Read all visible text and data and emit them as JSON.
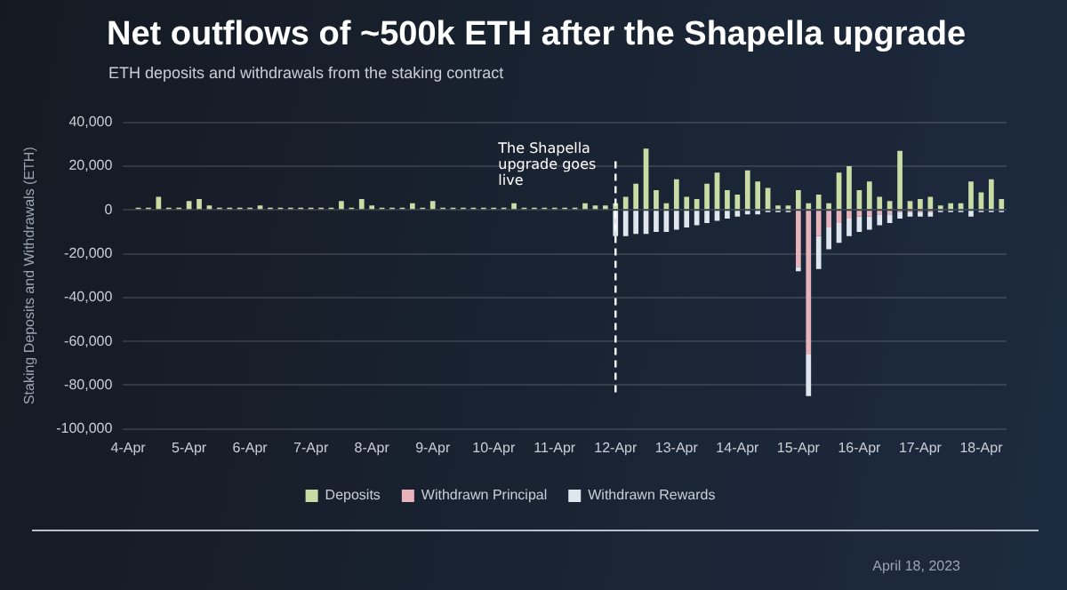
{
  "chart_data": {
    "type": "bar",
    "title": "Net outflows of ~500k ETH after the Shapella upgrade",
    "subtitle": "ETH deposits and withdrawals from the staking contract",
    "ylabel": "Staking Deposits and Withdrawals (ETH)",
    "categories": [
      "4-Apr",
      null,
      null,
      null,
      null,
      null,
      "5-Apr",
      null,
      null,
      null,
      null,
      null,
      "6-Apr",
      null,
      null,
      null,
      null,
      null,
      "7-Apr",
      null,
      null,
      null,
      null,
      null,
      "8-Apr",
      null,
      null,
      null,
      null,
      null,
      "9-Apr",
      null,
      null,
      null,
      null,
      null,
      "10-Apr",
      null,
      null,
      null,
      null,
      null,
      "11-Apr",
      null,
      null,
      null,
      null,
      null,
      "12-Apr",
      null,
      null,
      null,
      null,
      null,
      "13-Apr",
      null,
      null,
      null,
      null,
      null,
      "14-Apr",
      null,
      null,
      null,
      null,
      null,
      "15-Apr",
      null,
      null,
      null,
      null,
      null,
      "16-Apr",
      null,
      null,
      null,
      null,
      null,
      "17-Apr",
      null,
      null,
      null,
      null,
      null,
      "18-Apr",
      null,
      null
    ],
    "stacked": true,
    "series": [
      {
        "name": "Deposits",
        "color": "#c8dca4",
        "values": [
          0,
          1000,
          1000,
          6000,
          1000,
          1000,
          4000,
          5000,
          2000,
          1000,
          1000,
          1000,
          1000,
          2000,
          1000,
          1000,
          1000,
          1000,
          1000,
          1000,
          1000,
          4000,
          1000,
          5000,
          2000,
          1000,
          1000,
          1000,
          3000,
          1000,
          4000,
          1000,
          1000,
          1000,
          1000,
          1000,
          1000,
          1000,
          3000,
          1000,
          1000,
          1000,
          1000,
          1000,
          1000,
          3000,
          2000,
          2000,
          3000,
          6000,
          12000,
          28000,
          9000,
          3000,
          14000,
          6000,
          5000,
          12000,
          17000,
          9000,
          7000,
          18000,
          13000,
          10000,
          2000,
          2000,
          9000,
          3000,
          7000,
          3000,
          17000,
          20000,
          9000,
          13000,
          6000,
          4000,
          27000,
          4000,
          5000,
          6000,
          2000,
          3000,
          3000,
          13000,
          8000,
          14000,
          5000
        ]
      },
      {
        "name": "Withdrawn Principal",
        "color": "#e8b4bc",
        "values": [
          0,
          0,
          0,
          0,
          0,
          0,
          0,
          0,
          0,
          0,
          0,
          0,
          0,
          0,
          0,
          0,
          0,
          0,
          0,
          0,
          0,
          0,
          0,
          0,
          0,
          0,
          0,
          0,
          0,
          0,
          0,
          0,
          0,
          0,
          0,
          0,
          0,
          0,
          0,
          0,
          0,
          0,
          0,
          0,
          0,
          0,
          0,
          0,
          0,
          0,
          0,
          0,
          0,
          0,
          0,
          0,
          0,
          0,
          0,
          0,
          0,
          0,
          0,
          0,
          0,
          0,
          -26000,
          -66000,
          -12000,
          -8000,
          -6000,
          -4000,
          -3000,
          -3000,
          -2000,
          -2000,
          -1000,
          -1000,
          -1000,
          -1000,
          0,
          0,
          0,
          0,
          0,
          0,
          0
        ]
      },
      {
        "name": "Withdrawn Rewards",
        "color": "#dfe6ee",
        "values": [
          0,
          0,
          0,
          0,
          0,
          0,
          0,
          0,
          0,
          0,
          0,
          0,
          0,
          0,
          0,
          0,
          0,
          0,
          0,
          0,
          0,
          0,
          0,
          0,
          0,
          0,
          0,
          0,
          0,
          0,
          0,
          0,
          0,
          0,
          0,
          0,
          0,
          0,
          0,
          0,
          0,
          0,
          0,
          0,
          0,
          0,
          0,
          0,
          -12000,
          -12000,
          -11000,
          -11000,
          -10000,
          -10000,
          -9000,
          -8000,
          -7000,
          -6000,
          -5000,
          -4000,
          -3000,
          -2000,
          -2000,
          -1000,
          -1000,
          -1000,
          -2000,
          -19000,
          -15000,
          -10000,
          -9000,
          -8000,
          -7000,
          -6000,
          -5000,
          -4000,
          -3000,
          -2000,
          -2000,
          -2000,
          -1000,
          -1000,
          -1000,
          -3000,
          -1000,
          -1000,
          -1000
        ]
      }
    ],
    "ylim": [
      -100000,
      40000
    ],
    "yticks": [
      {
        "value": -100000,
        "label": "-100,000"
      },
      {
        "value": -80000,
        "label": "-80,000"
      },
      {
        "value": -60000,
        "label": "-60,000"
      },
      {
        "value": -40000,
        "label": "-40,000"
      },
      {
        "value": -20000,
        "label": "-20,000"
      },
      0,
      {
        "value": 20000,
        "label": "20,000"
      },
      {
        "value": 40000,
        "label": "40,000"
      }
    ],
    "grid": "y",
    "legend": "bottom",
    "ref_lines": [
      {
        "axis": "x",
        "value": "12-Apr",
        "label": "The Shapella upgrade goes live",
        "color": "#ffffff",
        "line_style": "dashed"
      }
    ],
    "annotations": [
      "April 18, 2023"
    ]
  }
}
